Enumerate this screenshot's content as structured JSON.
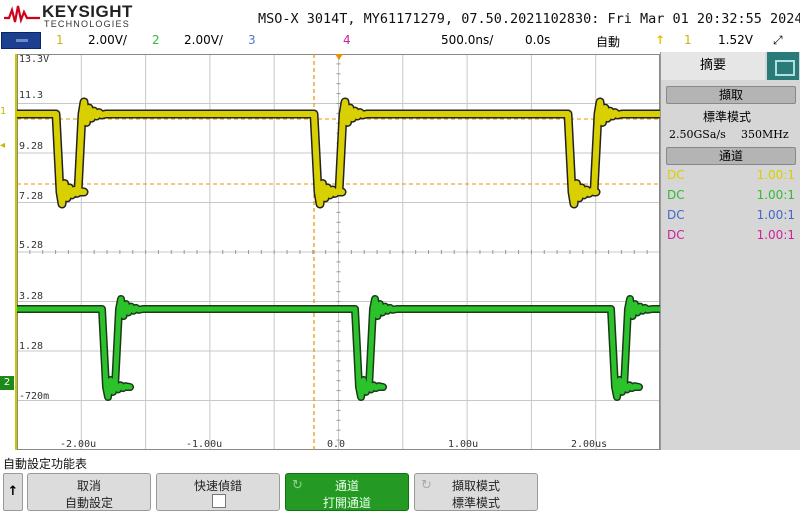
{
  "header": {
    "brand": "KEYSIGHT",
    "brand_sub": "TECHNOLOGIES",
    "instrument_info": "MSO-X 3014T, MY61171279, 07.50.2021102830: Fri Mar 01 20:32:55 2024"
  },
  "channel_bar": {
    "ch1_num": "1",
    "ch1_scale": "2.00V/",
    "ch2_num": "2",
    "ch2_scale": "2.00V/",
    "ch3_num": "3",
    "ch4_num": "4",
    "timebase": "500.0ns/",
    "delay": "0.0s",
    "trigger_mode": "自動",
    "trigger_source": "1",
    "trigger_level": "1.52V",
    "trigger_icon": "trigger-edge-icon",
    "arrow_icon": "expand-arrows-icon"
  },
  "plot": {
    "y_labels": [
      "13.3V",
      "11.3",
      "9.28",
      "7.28",
      "5.28",
      "3.28",
      "1.28",
      "-720m"
    ],
    "x_labels": [
      "-2.00u",
      "-1.00u",
      "0.0",
      "1.00u",
      "2.00us"
    ],
    "ch1_marker": "1",
    "ch2_marker": "2",
    "colors": {
      "ch1": "#d8d000",
      "ch2": "#2cc22c",
      "cursor": "#e59400",
      "grid": "#c8c8c8"
    }
  },
  "side_panel": {
    "tab_label": "摘要",
    "acq_header": "擷取",
    "acq_mode": "標準模式",
    "sample_rate": "2.50GSa/s",
    "bandwidth": "350MHz",
    "channel_header": "通道",
    "channels": [
      {
        "coupling": "DC",
        "ratio": "1.00:1",
        "color": "#d8d000"
      },
      {
        "coupling": "DC",
        "ratio": "1.00:1",
        "color": "#33bb33"
      },
      {
        "coupling": "DC",
        "ratio": "1.00:1",
        "color": "#4466cc"
      },
      {
        "coupling": "DC",
        "ratio": "1.00:1",
        "color": "#cc2299"
      }
    ]
  },
  "softkeys": {
    "menu_title": "自動設定功能表",
    "back_icon": "up-arrow-icon",
    "key1_a": "取消",
    "key1_b": "自動設定",
    "key2_a": "快速偵錯",
    "key3_a": "通道",
    "key3_b": "打開通道",
    "key4_a": "擷取模式",
    "key4_b": "標準模式"
  }
}
